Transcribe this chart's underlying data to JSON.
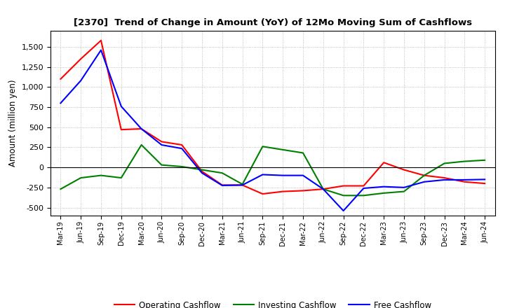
{
  "title": "[2370]  Trend of Change in Amount (YoY) of 12Mo Moving Sum of Cashflows",
  "ylabel": "Amount (million yen)",
  "x_labels": [
    "Mar-19",
    "Jun-19",
    "Sep-19",
    "Dec-19",
    "Mar-20",
    "Jun-20",
    "Sep-20",
    "Dec-20",
    "Mar-21",
    "Jun-21",
    "Sep-21",
    "Dec-21",
    "Mar-22",
    "Jun-22",
    "Sep-22",
    "Dec-22",
    "Mar-23",
    "Jun-23",
    "Sep-23",
    "Dec-23",
    "Mar-24",
    "Jun-24"
  ],
  "operating": [
    1100,
    1350,
    1580,
    470,
    480,
    320,
    280,
    -50,
    -220,
    -220,
    -330,
    -300,
    -290,
    -270,
    -230,
    -230,
    60,
    -30,
    -100,
    -130,
    -180,
    -200
  ],
  "investing": [
    -270,
    -130,
    -100,
    -130,
    280,
    30,
    10,
    -30,
    -70,
    -210,
    260,
    220,
    180,
    -270,
    -350,
    -350,
    -320,
    -300,
    -100,
    50,
    75,
    90
  ],
  "free": [
    800,
    1080,
    1460,
    760,
    480,
    280,
    235,
    -70,
    -225,
    -220,
    -90,
    -100,
    -100,
    -270,
    -540,
    -260,
    -240,
    -250,
    -180,
    -155,
    -155,
    -150
  ],
  "operating_color": "#ff0000",
  "investing_color": "#008000",
  "free_color": "#0000ff",
  "ylim": [
    -600,
    1700
  ],
  "yticks": [
    -500,
    -250,
    0,
    250,
    500,
    750,
    1000,
    1250,
    1500
  ],
  "background_color": "#ffffff",
  "grid_color": "#b0b0b0"
}
